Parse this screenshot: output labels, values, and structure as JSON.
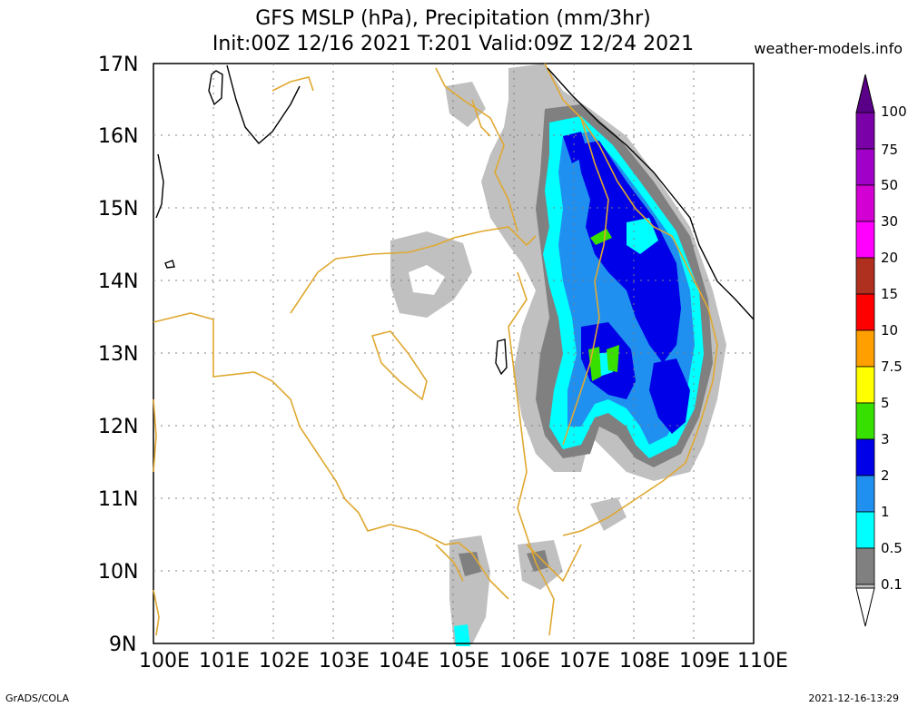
{
  "header": {
    "title_line1": "GFS MSLP (hPa), Precipitation (mm/3hr)",
    "title_line2": "Init:00Z 12/16 2021 T:201 Valid:09Z 12/24 2021",
    "site": "weather-models.info"
  },
  "footer": {
    "left": "GrADS/COLA",
    "right": "2021-12-16-13:29"
  },
  "map": {
    "lon_labels": [
      "100E",
      "101E",
      "102E",
      "103E",
      "104E",
      "105E",
      "106E",
      "107E",
      "108E",
      "109E",
      "110E"
    ],
    "lat_labels": [
      "17N",
      "16N",
      "15N",
      "14N",
      "13N",
      "12N",
      "11N",
      "10N",
      "9N"
    ],
    "lon_range": [
      100,
      110
    ],
    "lat_range": [
      9,
      17
    ],
    "coastline_color": "#e0a830",
    "isobar_color": "#000000"
  },
  "colorbar": {
    "levels": [
      "100",
      "75",
      "50",
      "30",
      "20",
      "15",
      "10",
      "7.5",
      "5",
      "3",
      "2",
      "1",
      "0.5",
      "0.1"
    ],
    "colors": [
      "#7a00a8",
      "#a000c8",
      "#d200d2",
      "#ff00ff",
      "#b03020",
      "#ff0000",
      "#ffa000",
      "#ffff00",
      "#38e000",
      "#0000e8",
      "#2090f0",
      "#00ffff",
      "#808080",
      "#c0c0c0"
    ]
  }
}
